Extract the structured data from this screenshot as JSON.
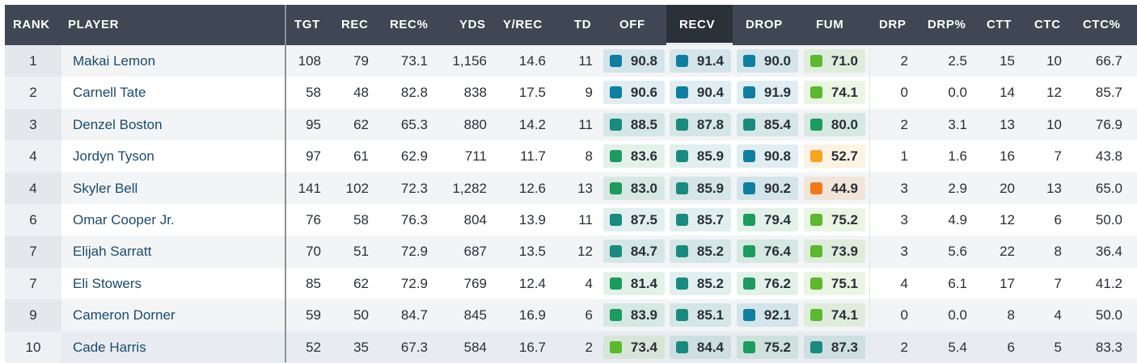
{
  "headers": {
    "rank": "RANK",
    "player": "PLAYER",
    "tgt": "TGT",
    "rec": "REC",
    "rec_pct": "REC%",
    "yds": "YDS",
    "y_rec": "Y/REC",
    "td": "TD",
    "off": "OFF",
    "recv": "RECV",
    "drop": "DROP",
    "fum": "FUM",
    "drp": "DRP",
    "drp_pct": "DRP%",
    "ctt": "CTT",
    "ctc": "CTC",
    "ctc_pct": "CTC%"
  },
  "sorted_column": "RECV",
  "grade_colors": {
    "elite_blue": "#0f7ea0",
    "teal": "#1a8a7e",
    "green": "#1e9a5e",
    "light_green": "#5cb82e",
    "yellow": "#f5a623",
    "orange": "#f07a1a"
  },
  "rows": [
    {
      "rank": "1",
      "player": "Makai Lemon",
      "tgt": "108",
      "rec": "79",
      "rec_pct": "73.1",
      "yds": "1,156",
      "y_rec": "14.6",
      "td": "11",
      "off": "90.8",
      "off_c": "#0f7ea0",
      "recv": "91.4",
      "recv_c": "#0f7ea0",
      "drop": "90.0",
      "drop_c": "#0f7ea0",
      "fum": "71.0",
      "fum_c": "#5cb82e",
      "drp": "2",
      "drp_pct": "2.5",
      "ctt": "15",
      "ctc": "10",
      "ctc_pct": "66.7"
    },
    {
      "rank": "2",
      "player": "Carnell Tate",
      "tgt": "58",
      "rec": "48",
      "rec_pct": "82.8",
      "yds": "838",
      "y_rec": "17.5",
      "td": "9",
      "off": "90.6",
      "off_c": "#0f7ea0",
      "recv": "90.4",
      "recv_c": "#0f7ea0",
      "drop": "91.9",
      "drop_c": "#0f7ea0",
      "fum": "74.1",
      "fum_c": "#5cb82e",
      "drp": "0",
      "drp_pct": "0.0",
      "ctt": "14",
      "ctc": "12",
      "ctc_pct": "85.7"
    },
    {
      "rank": "3",
      "player": "Denzel Boston",
      "tgt": "95",
      "rec": "62",
      "rec_pct": "65.3",
      "yds": "880",
      "y_rec": "14.2",
      "td": "11",
      "off": "88.5",
      "off_c": "#1a8a7e",
      "recv": "87.8",
      "recv_c": "#1a8a7e",
      "drop": "85.4",
      "drop_c": "#1a8a7e",
      "fum": "80.0",
      "fum_c": "#1e9a5e",
      "drp": "2",
      "drp_pct": "3.1",
      "ctt": "13",
      "ctc": "10",
      "ctc_pct": "76.9"
    },
    {
      "rank": "4",
      "player": "Jordyn Tyson",
      "tgt": "97",
      "rec": "61",
      "rec_pct": "62.9",
      "yds": "711",
      "y_rec": "11.7",
      "td": "8",
      "off": "83.6",
      "off_c": "#1e9a5e",
      "recv": "85.9",
      "recv_c": "#1a8a7e",
      "drop": "90.8",
      "drop_c": "#0f7ea0",
      "fum": "52.7",
      "fum_c": "#f5a623",
      "drp": "1",
      "drp_pct": "1.6",
      "ctt": "16",
      "ctc": "7",
      "ctc_pct": "43.8"
    },
    {
      "rank": "4",
      "player": "Skyler Bell",
      "tgt": "141",
      "rec": "102",
      "rec_pct": "72.3",
      "yds": "1,282",
      "y_rec": "12.6",
      "td": "13",
      "off": "83.0",
      "off_c": "#1e9a5e",
      "recv": "85.9",
      "recv_c": "#1a8a7e",
      "drop": "90.2",
      "drop_c": "#0f7ea0",
      "fum": "44.9",
      "fum_c": "#f07a1a",
      "drp": "3",
      "drp_pct": "2.9",
      "ctt": "20",
      "ctc": "13",
      "ctc_pct": "65.0"
    },
    {
      "rank": "6",
      "player": "Omar Cooper Jr.",
      "tgt": "76",
      "rec": "58",
      "rec_pct": "76.3",
      "yds": "804",
      "y_rec": "13.9",
      "td": "11",
      "off": "87.5",
      "off_c": "#1a8a7e",
      "recv": "85.7",
      "recv_c": "#1a8a7e",
      "drop": "79.4",
      "drop_c": "#1e9a5e",
      "fum": "75.2",
      "fum_c": "#5cb82e",
      "drp": "3",
      "drp_pct": "4.9",
      "ctt": "12",
      "ctc": "6",
      "ctc_pct": "50.0"
    },
    {
      "rank": "7",
      "player": "Elijah Sarratt",
      "tgt": "70",
      "rec": "51",
      "rec_pct": "72.9",
      "yds": "687",
      "y_rec": "13.5",
      "td": "12",
      "off": "84.7",
      "off_c": "#1a8a7e",
      "recv": "85.2",
      "recv_c": "#1a8a7e",
      "drop": "76.4",
      "drop_c": "#1e9a5e",
      "fum": "73.9",
      "fum_c": "#5cb82e",
      "drp": "3",
      "drp_pct": "5.6",
      "ctt": "22",
      "ctc": "8",
      "ctc_pct": "36.4"
    },
    {
      "rank": "7",
      "player": "Eli Stowers",
      "tgt": "85",
      "rec": "62",
      "rec_pct": "72.9",
      "yds": "769",
      "y_rec": "12.4",
      "td": "4",
      "off": "81.4",
      "off_c": "#1e9a5e",
      "recv": "85.2",
      "recv_c": "#1a8a7e",
      "drop": "76.2",
      "drop_c": "#1e9a5e",
      "fum": "75.1",
      "fum_c": "#5cb82e",
      "drp": "4",
      "drp_pct": "6.1",
      "ctt": "17",
      "ctc": "7",
      "ctc_pct": "41.2"
    },
    {
      "rank": "9",
      "player": "Cameron Dorner",
      "tgt": "59",
      "rec": "50",
      "rec_pct": "84.7",
      "yds": "845",
      "y_rec": "16.9",
      "td": "6",
      "off": "83.9",
      "off_c": "#1e9a5e",
      "recv": "85.1",
      "recv_c": "#1a8a7e",
      "drop": "92.1",
      "drop_c": "#0f7ea0",
      "fum": "74.1",
      "fum_c": "#5cb82e",
      "drp": "0",
      "drp_pct": "0.0",
      "ctt": "8",
      "ctc": "4",
      "ctc_pct": "50.0"
    },
    {
      "rank": "10",
      "player": "Cade Harris",
      "tgt": "52",
      "rec": "35",
      "rec_pct": "67.3",
      "yds": "584",
      "y_rec": "16.7",
      "td": "2",
      "off": "73.4",
      "off_c": "#5cb82e",
      "recv": "84.4",
      "recv_c": "#1a8a7e",
      "drop": "75.2",
      "drop_c": "#1e9a5e",
      "fum": "87.3",
      "fum_c": "#1a8a7e",
      "drp": "2",
      "drp_pct": "5.4",
      "ctt": "6",
      "ctc": "5",
      "ctc_pct": "83.3"
    }
  ]
}
